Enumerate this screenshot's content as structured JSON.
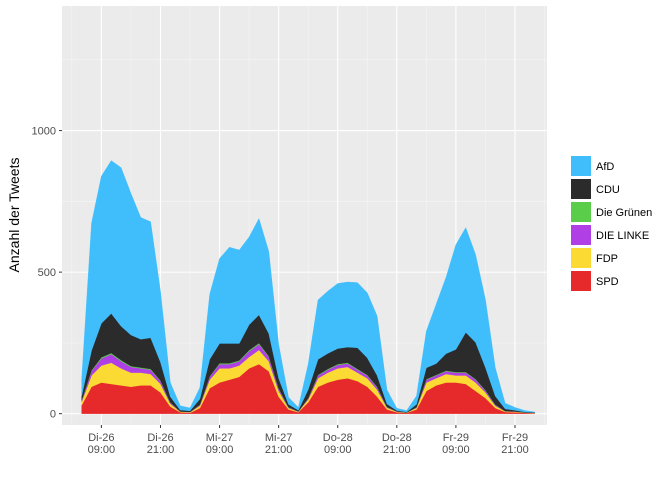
{
  "chart_data": {
    "type": "area",
    "stacked": true,
    "title": "",
    "xlabel": "",
    "ylabel": "Anzahl der Tweets",
    "x_unit": "hours since Di-26 00:00",
    "xlim": [
      1.0,
      99.5
    ],
    "ylim": [
      -40,
      1440
    ],
    "y_ticks": [
      0,
      500,
      1000
    ],
    "y_tick_labels": [
      "0",
      "500",
      "1000"
    ],
    "x_ticks": [
      9,
      21,
      33,
      45,
      57,
      69,
      81,
      93
    ],
    "x_tick_labels": [
      [
        "Di-26",
        "09:00"
      ],
      [
        "Di-26",
        "21:00"
      ],
      [
        "Mi-27",
        "09:00"
      ],
      [
        "Mi-27",
        "21:00"
      ],
      [
        "Do-28",
        "09:00"
      ],
      [
        "Do-28",
        "21:00"
      ],
      [
        "Fr-29",
        "09:00"
      ],
      [
        "Fr-29",
        "21:00"
      ]
    ],
    "grid": true,
    "legend_position": "right",
    "x": [
      5,
      7,
      9,
      11,
      13,
      15,
      17,
      19,
      21,
      23,
      25,
      27,
      29,
      31,
      33,
      35,
      37,
      39,
      41,
      43,
      45,
      47,
      49,
      51,
      53,
      55,
      57,
      59,
      61,
      63,
      65,
      67,
      69,
      71,
      73,
      75,
      77,
      79,
      81,
      83,
      85,
      87,
      89,
      91,
      93,
      95,
      97
    ],
    "series": [
      {
        "name": "SPD",
        "color": "#E6292B",
        "values": [
          30,
          95,
          110,
          105,
          100,
          95,
          100,
          100,
          75,
          25,
          5,
          3,
          20,
          90,
          110,
          120,
          130,
          160,
          175,
          150,
          60,
          15,
          5,
          40,
          95,
          110,
          120,
          125,
          115,
          95,
          60,
          15,
          5,
          3,
          15,
          80,
          100,
          110,
          110,
          105,
          80,
          55,
          20,
          6,
          5,
          3,
          2
        ]
      },
      {
        "name": "FDP",
        "color": "#FBDB33",
        "values": [
          12,
          40,
          60,
          75,
          60,
          50,
          45,
          40,
          30,
          10,
          2,
          2,
          8,
          30,
          50,
          40,
          40,
          40,
          50,
          35,
          20,
          5,
          2,
          10,
          30,
          35,
          40,
          40,
          30,
          30,
          25,
          6,
          2,
          1,
          5,
          30,
          25,
          30,
          25,
          30,
          30,
          20,
          8,
          2,
          2,
          1,
          1
        ]
      },
      {
        "name": "DIE LINKE",
        "color": "#B040E5",
        "values": [
          5,
          15,
          25,
          30,
          25,
          20,
          15,
          15,
          10,
          4,
          1,
          1,
          3,
          10,
          15,
          15,
          15,
          20,
          20,
          15,
          8,
          2,
          1,
          4,
          10,
          10,
          12,
          12,
          10,
          10,
          8,
          2,
          1,
          0,
          2,
          10,
          10,
          10,
          10,
          10,
          10,
          6,
          3,
          1,
          1,
          0,
          0
        ]
      },
      {
        "name": "Die Grünen",
        "color": "#5ACD4A",
        "values": [
          1,
          3,
          4,
          4,
          4,
          3,
          3,
          3,
          2,
          1,
          0,
          0,
          1,
          2,
          3,
          3,
          3,
          4,
          4,
          3,
          2,
          1,
          0,
          1,
          2,
          3,
          3,
          3,
          3,
          2,
          2,
          1,
          0,
          0,
          1,
          2,
          2,
          2,
          2,
          2,
          2,
          2,
          1,
          0,
          0,
          0,
          0
        ]
      },
      {
        "name": "CDU",
        "color": "#2B2B2B",
        "values": [
          15,
          70,
          120,
          140,
          120,
          110,
          100,
          110,
          65,
          20,
          5,
          4,
          20,
          60,
          70,
          70,
          60,
          90,
          100,
          80,
          35,
          10,
          4,
          30,
          55,
          55,
          55,
          55,
          75,
          60,
          40,
          10,
          3,
          2,
          10,
          40,
          40,
          60,
          80,
          140,
          130,
          80,
          30,
          8,
          4,
          2,
          1
        ]
      },
      {
        "name": "AfD",
        "color": "#40BEFC",
        "values": [
          60,
          450,
          520,
          540,
          560,
          500,
          430,
          410,
          250,
          50,
          15,
          10,
          40,
          230,
          300,
          340,
          330,
          310,
          340,
          290,
          120,
          25,
          10,
          90,
          210,
          220,
          230,
          230,
          230,
          230,
          210,
          50,
          8,
          5,
          30,
          130,
          210,
          270,
          370,
          370,
          310,
          240,
          100,
          20,
          10,
          5,
          2
        ]
      }
    ],
    "legend_order": [
      "AfD",
      "CDU",
      "Die Grünen",
      "DIE LINKE",
      "FDP",
      "SPD"
    ]
  }
}
